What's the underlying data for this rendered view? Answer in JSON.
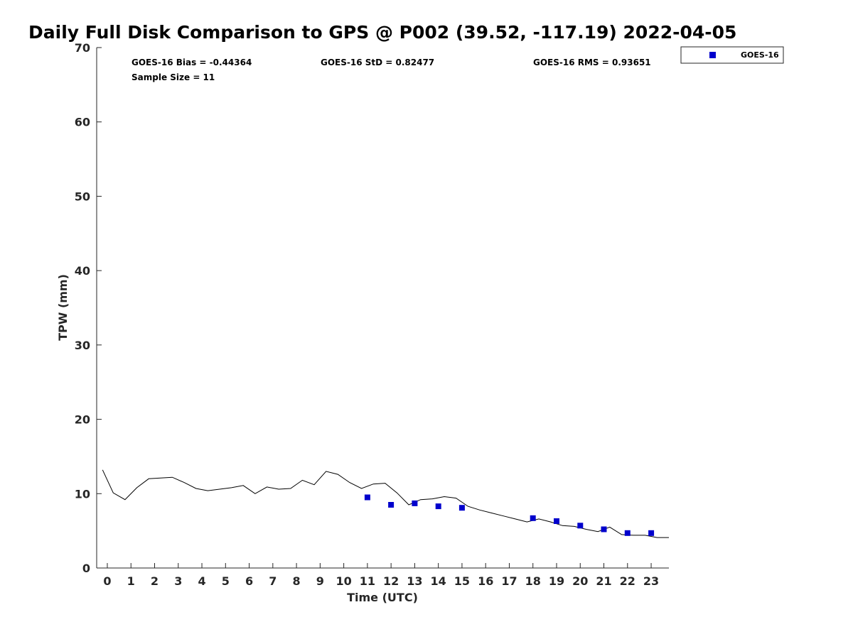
{
  "chart_data": {
    "type": "line",
    "title": "Daily Full Disk Comparison to GPS @ P002 (39.52, -117.19) 2022-04-05",
    "xlabel": "Time (UTC)",
    "ylabel": "TPW (mm)",
    "xlim": [
      -0.45,
      23.75
    ],
    "ylim": [
      0,
      70
    ],
    "x_ticks": [
      "0",
      "1",
      "2",
      "3",
      "4",
      "5",
      "6",
      "7",
      "8",
      "9",
      "10",
      "11",
      "12",
      "13",
      "14",
      "15",
      "16",
      "17",
      "18",
      "19",
      "20",
      "21",
      "22",
      "23"
    ],
    "y_ticks": [
      "0",
      "10",
      "20",
      "30",
      "40",
      "50",
      "60",
      "70"
    ],
    "grid": false,
    "legend": "top-right, outside plot",
    "stats": {
      "bias": "GOES-16 Bias = -0.44364",
      "std": "GOES-16 StD = 0.82477",
      "rms": "GOES-16 RMS = 0.93651",
      "sample": "Sample Size = 11"
    },
    "series": [
      {
        "type": "line",
        "color": "#000000",
        "x": [
          -0.2,
          0.25,
          0.75,
          1.25,
          1.75,
          2.25,
          2.75,
          3.25,
          3.75,
          4.25,
          4.75,
          5.25,
          5.75,
          6.25,
          6.75,
          7.25,
          7.75,
          8.25,
          8.75,
          9.25,
          9.75,
          10.25,
          10.75,
          11.25,
          11.75,
          12.25,
          12.75,
          13.25,
          13.75,
          14.25,
          14.75,
          15.25,
          15.75,
          16.25,
          16.75,
          17.25,
          17.75,
          18.25,
          18.75,
          19.25,
          19.75,
          20.25,
          20.75,
          21.25,
          21.75,
          22.25,
          22.75,
          23.25,
          23.75
        ],
        "y": [
          13.2,
          10.1,
          9.2,
          10.8,
          12.0,
          12.1,
          12.2,
          11.5,
          10.7,
          10.4,
          10.6,
          10.8,
          11.1,
          10.0,
          10.9,
          10.6,
          10.7,
          11.8,
          11.2,
          13.0,
          12.6,
          11.5,
          10.7,
          11.3,
          11.4,
          10.1,
          8.5,
          9.2,
          9.3,
          9.6,
          9.4,
          8.3,
          7.8,
          7.4,
          7.0,
          6.6,
          6.2,
          6.6,
          6.2,
          5.7,
          5.6,
          5.2,
          4.9,
          5.5,
          4.5,
          4.4,
          4.4,
          4.1,
          4.1
        ]
      },
      {
        "name": "GOES-16",
        "type": "scatter",
        "color": "#0000cc",
        "x": [
          11,
          12,
          13,
          14,
          15,
          18,
          19,
          20,
          21,
          22,
          23
        ],
        "y": [
          9.5,
          8.5,
          8.7,
          8.3,
          8.1,
          6.7,
          6.3,
          5.7,
          5.2,
          4.7,
          4.7
        ]
      }
    ]
  }
}
